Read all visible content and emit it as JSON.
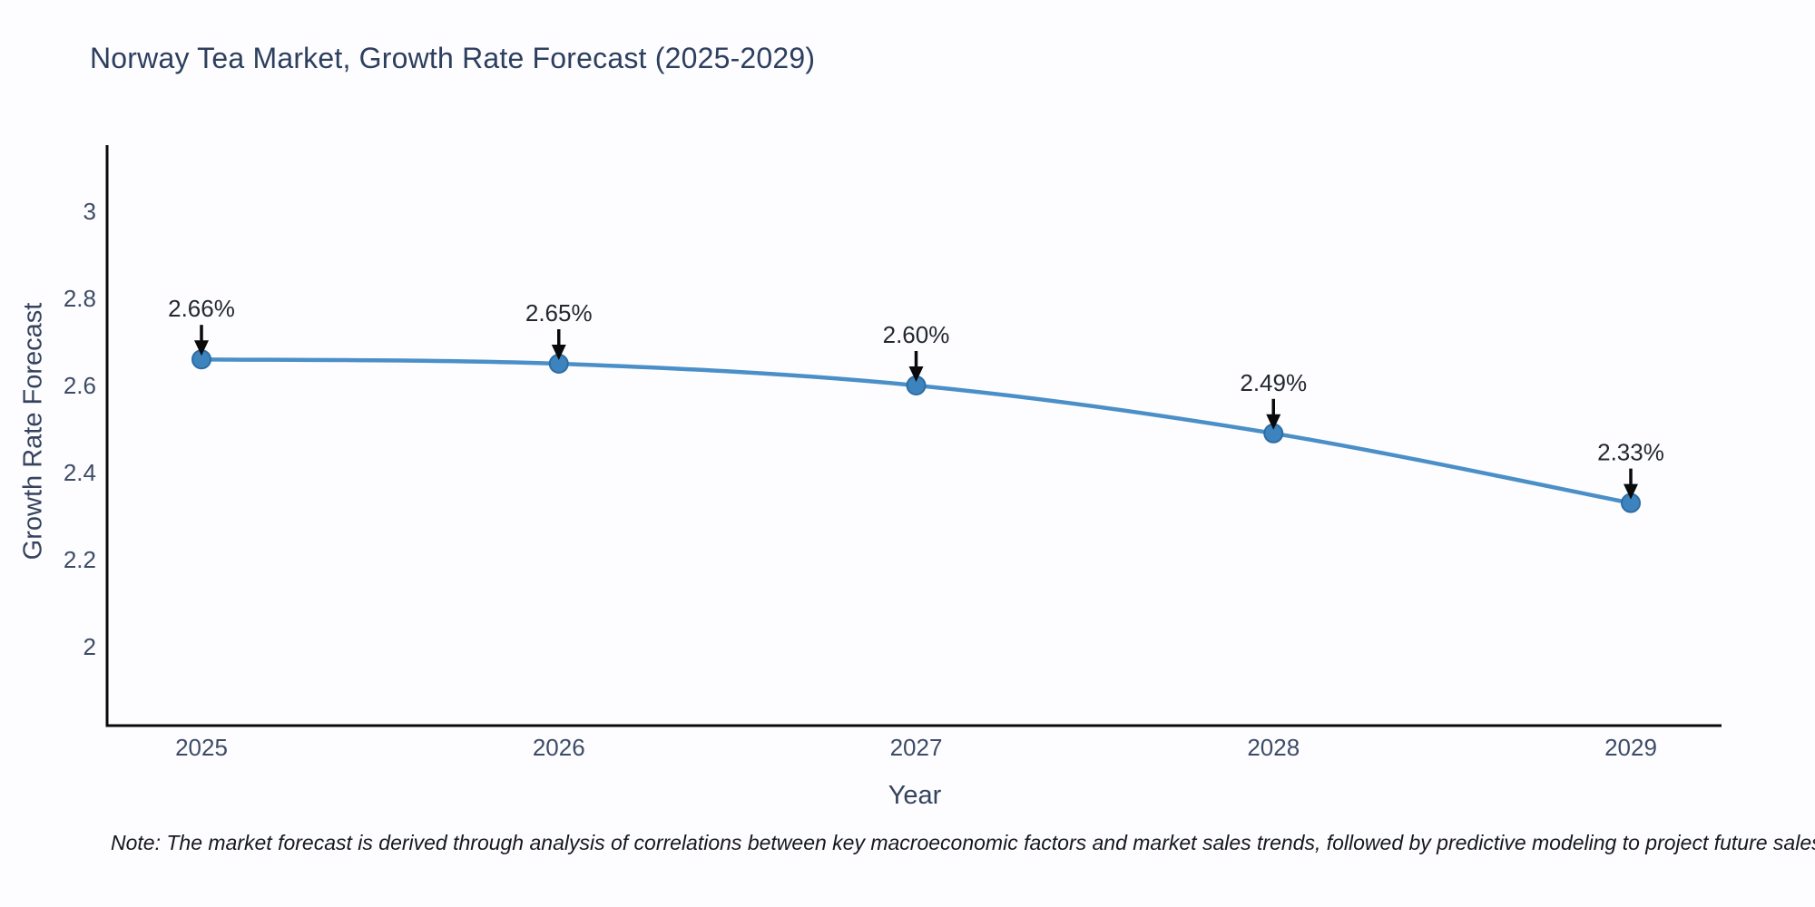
{
  "title": "Norway Tea Market, Growth Rate Forecast (2025-2029)",
  "note": "Note: The market forecast is derived through analysis of correlations between key macroeconomic factors and market sales trends, followed by predictive modeling to project future sales",
  "chart_data": {
    "type": "line",
    "title": "Norway Tea Market, Growth Rate Forecast (2025-2029)",
    "xlabel": "Year",
    "ylabel": "Growth Rate Forecast",
    "x": [
      "2025",
      "2026",
      "2027",
      "2028",
      "2029"
    ],
    "series": [
      {
        "name": "Growth Rate Forecast",
        "values": [
          2.66,
          2.65,
          2.6,
          2.49,
          2.33
        ]
      }
    ],
    "annotations": [
      "2.66%",
      "2.65%",
      "2.60%",
      "2.49%",
      "2.33%"
    ],
    "yticks": [
      3,
      2.8,
      2.6,
      2.4,
      2.2,
      2
    ],
    "ylim": [
      1.82,
      3.15
    ],
    "grid": false,
    "legend": false,
    "colors": {
      "line": "#4a8fc7",
      "marker_fill": "#3d83bd",
      "marker_edge": "#2e6da4",
      "axis": "#0a0a0a",
      "arrow": "#0a0a0a"
    }
  }
}
